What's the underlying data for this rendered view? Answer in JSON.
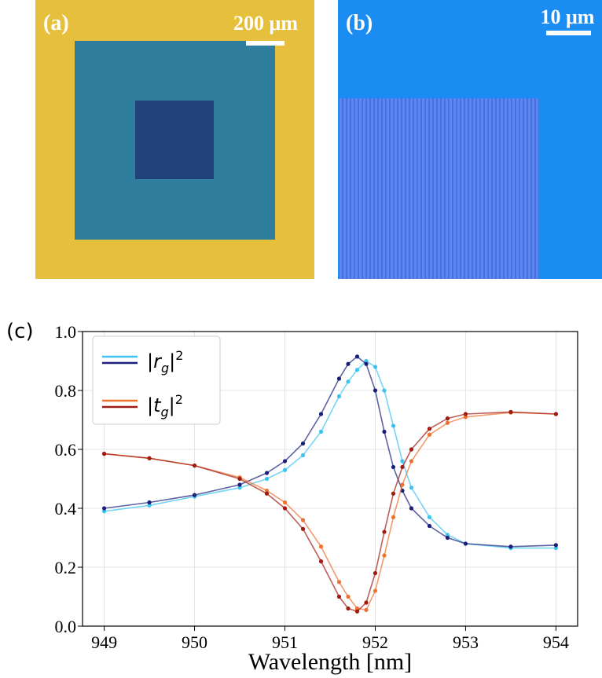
{
  "panels": {
    "a": {
      "label": "(a)",
      "scale": "200 μm"
    },
    "b": {
      "label": "(b)",
      "scale": "10 μm"
    }
  },
  "chart_data": {
    "type": "line",
    "panel_label": "(c)",
    "x_label": "Wavelength [nm]",
    "x": [
      949,
      949.5,
      950,
      950.5,
      950.8,
      951,
      951.2,
      951.4,
      951.6,
      951.7,
      951.8,
      951.9,
      952,
      952.1,
      952.2,
      952.3,
      952.4,
      952.6,
      952.8,
      953,
      953.5,
      954
    ],
    "series": [
      {
        "color": "#3cc3f0",
        "values": [
          0.39,
          0.41,
          0.44,
          0.47,
          0.5,
          0.53,
          0.58,
          0.66,
          0.78,
          0.83,
          0.87,
          0.9,
          0.88,
          0.8,
          0.68,
          0.56,
          0.47,
          0.37,
          0.31,
          0.28,
          0.265,
          0.265
        ]
      },
      {
        "color": "#1a1f7a",
        "values": [
          0.4,
          0.42,
          0.445,
          0.48,
          0.52,
          0.56,
          0.62,
          0.72,
          0.84,
          0.89,
          0.915,
          0.89,
          0.8,
          0.66,
          0.54,
          0.46,
          0.4,
          0.34,
          0.3,
          0.28,
          0.27,
          0.275
        ]
      },
      {
        "color": "#f07030",
        "values": [
          0.585,
          0.57,
          0.545,
          0.505,
          0.46,
          0.42,
          0.36,
          0.27,
          0.15,
          0.1,
          0.06,
          0.055,
          0.12,
          0.24,
          0.37,
          0.48,
          0.56,
          0.65,
          0.69,
          0.71,
          0.725,
          0.72
        ]
      },
      {
        "color": "#a01a10",
        "values": [
          0.585,
          0.57,
          0.545,
          0.5,
          0.45,
          0.4,
          0.33,
          0.22,
          0.1,
          0.06,
          0.05,
          0.08,
          0.18,
          0.32,
          0.45,
          0.54,
          0.6,
          0.67,
          0.705,
          0.72,
          0.727,
          0.72
        ]
      }
    ],
    "legend_entries": [
      {
        "parts": [
          "|",
          "r",
          "g",
          "|",
          "2"
        ]
      },
      {
        "parts": [
          "|",
          "t",
          "g",
          "|",
          "2"
        ]
      }
    ],
    "legend_position": "upper left",
    "xlim": [
      948.76,
      954.24
    ],
    "xticks": [
      949,
      950,
      951,
      952,
      953,
      954
    ],
    "ylim": [
      0,
      1
    ],
    "yticks": [
      {
        "value": 0,
        "label": "0.0"
      },
      0.2,
      0.4,
      0.6,
      0.8,
      {
        "value": 1,
        "label": "1.0"
      }
    ],
    "grid": true
  }
}
